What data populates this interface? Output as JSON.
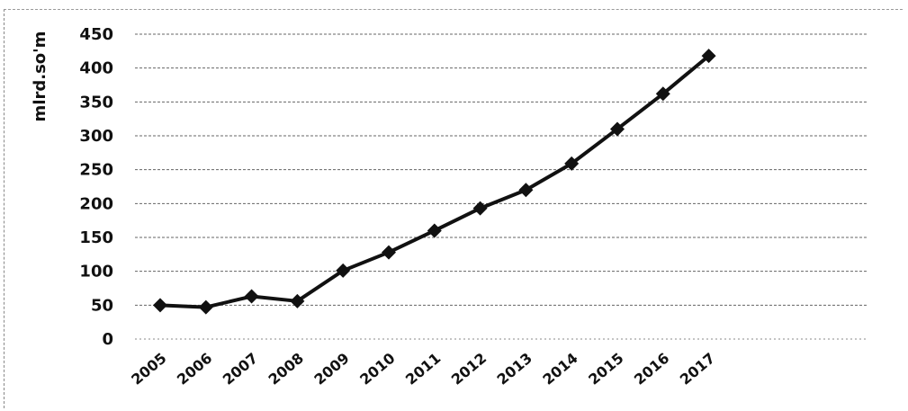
{
  "chart_data": {
    "type": "line",
    "title": "",
    "xlabel": "",
    "ylabel": "mlrd.so'm",
    "categories": [
      "2005",
      "2006",
      "2007",
      "2008",
      "2009",
      "2010",
      "2011",
      "2012",
      "2013",
      "2014",
      "2015",
      "2016",
      "2017"
    ],
    "x_tick_labels": [
      "2005",
      "2006",
      "2007",
      "2008",
      "2009",
      "2010",
      "2011",
      "2012",
      "2013",
      "2014",
      "2015",
      "2016",
      "2017"
    ],
    "y_ticks": [
      "0",
      "50",
      "100",
      "150",
      "200",
      "250",
      "300",
      "350",
      "400",
      "450"
    ],
    "ylim": [
      0,
      450
    ],
    "grid": true,
    "series": [
      {
        "values": [
          50,
          47,
          63,
          56,
          101,
          128,
          160,
          193,
          220,
          259,
          310,
          362,
          418
        ]
      }
    ],
    "colors": {
      "line": "#111111",
      "marker": "#111111",
      "grid": "#666666"
    }
  }
}
